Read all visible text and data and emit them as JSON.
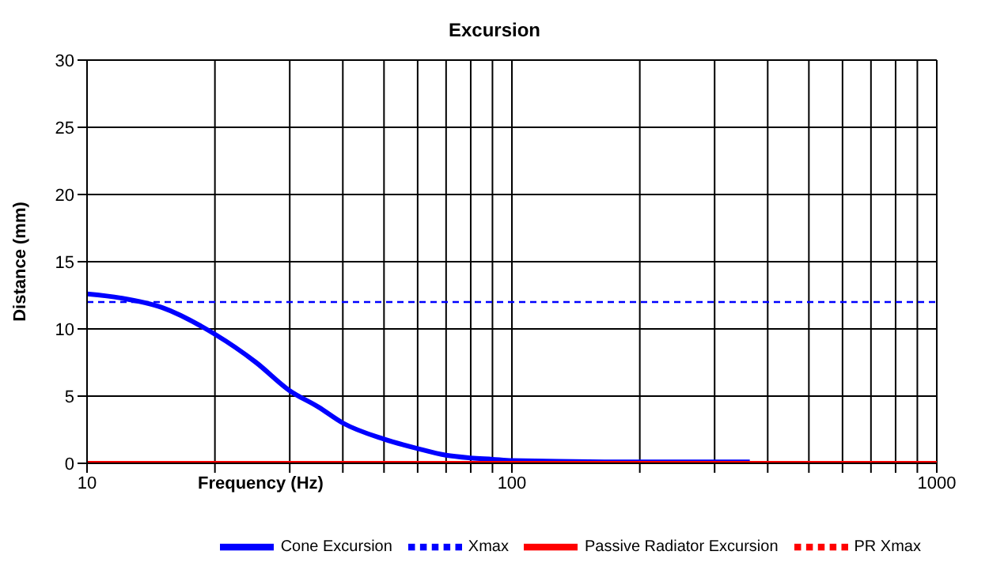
{
  "chart_data": {
    "type": "line",
    "title": "Excursion",
    "xlabel": "Frequency (Hz)",
    "ylabel": "Distance (mm)",
    "log": "x",
    "xlim": [
      10,
      1000
    ],
    "xticks": [
      10,
      {
        "value": 20,
        "label": null
      },
      {
        "value": 30,
        "label": null
      },
      {
        "value": 40,
        "label": null
      },
      {
        "value": 50,
        "label": null
      },
      {
        "value": 60,
        "label": null
      },
      {
        "value": 70,
        "label": null
      },
      {
        "value": 80,
        "label": null
      },
      {
        "value": 90,
        "label": null
      },
      100,
      {
        "value": 200,
        "label": null
      },
      {
        "value": 300,
        "label": null
      },
      {
        "value": 400,
        "label": null
      },
      {
        "value": 500,
        "label": null
      },
      {
        "value": 600,
        "label": null
      },
      {
        "value": 700,
        "label": null
      },
      {
        "value": 800,
        "label": null
      },
      {
        "value": 900,
        "label": null
      },
      1000
    ],
    "ylim": [
      0,
      30
    ],
    "yticks": [
      0,
      5,
      10,
      15,
      20,
      25,
      30
    ],
    "grid": true,
    "legend": "bottom",
    "marker": "none",
    "series": [
      {
        "name": "Cone Excursion",
        "color": "#0000ff",
        "line_style": "solid",
        "x": [
          10,
          12,
          15,
          20,
          25,
          30,
          35,
          40,
          50,
          60,
          70,
          80,
          90,
          100,
          200,
          363
        ],
        "values": [
          12.6,
          12.3,
          11.6,
          9.6,
          7.5,
          5.4,
          4.2,
          3.0,
          1.8,
          1.1,
          0.6,
          0.4,
          0.3,
          0.2,
          0.1,
          0.1
        ]
      },
      {
        "name": "Xmax",
        "color": "#0000ff",
        "line_style": "dashed",
        "x": [
          10,
          1000
        ],
        "values": [
          12,
          12
        ]
      },
      {
        "name": "Passive Radiator Excursion",
        "color": "#ff0000",
        "line_style": "solid",
        "x": [
          10,
          1000
        ],
        "values": [
          0,
          0
        ]
      },
      {
        "name": "PR Xmax",
        "color": "#ff0000",
        "line_style": "dashed",
        "values": [
          null
        ]
      }
    ]
  }
}
